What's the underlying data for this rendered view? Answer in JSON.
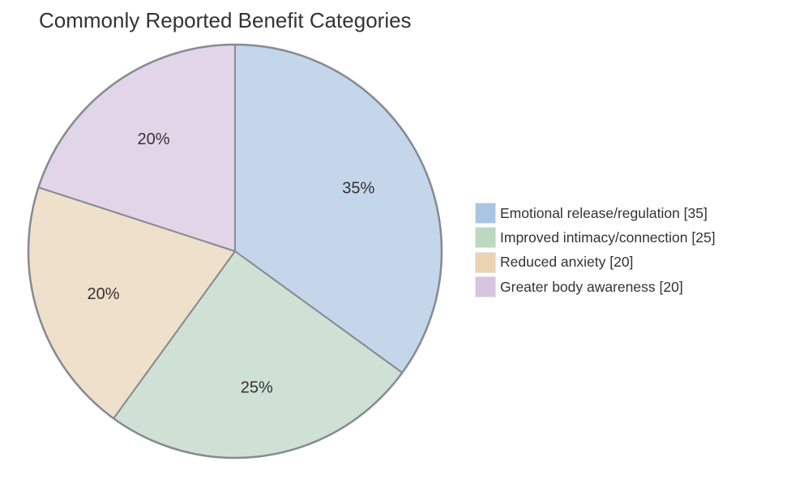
{
  "chart_data": {
    "type": "pie",
    "title": "Commonly Reported Benefit Categories",
    "categories": [
      "Emotional release/regulation",
      "Improved intimacy/connection",
      "Reduced anxiety",
      "Greater body awareness"
    ],
    "values": [
      35,
      25,
      20,
      20
    ],
    "slice_labels": [
      "35%",
      "25%",
      "20%",
      "20%"
    ],
    "legend_labels": [
      "Emotional release/regulation [35]",
      "Improved intimacy/connection [25]",
      "Reduced anxiety [20]",
      "Greater body awareness [20]"
    ],
    "colors": [
      "#c4d6e9",
      "#cfe1d4",
      "#efe0cb",
      "#e2d5e8"
    ],
    "legend_colors": [
      "#a9c5e2",
      "#bcd8c3",
      "#ecd3b1",
      "#d6c4de"
    ],
    "stroke_color": "#888a94",
    "legend_position": "right"
  }
}
